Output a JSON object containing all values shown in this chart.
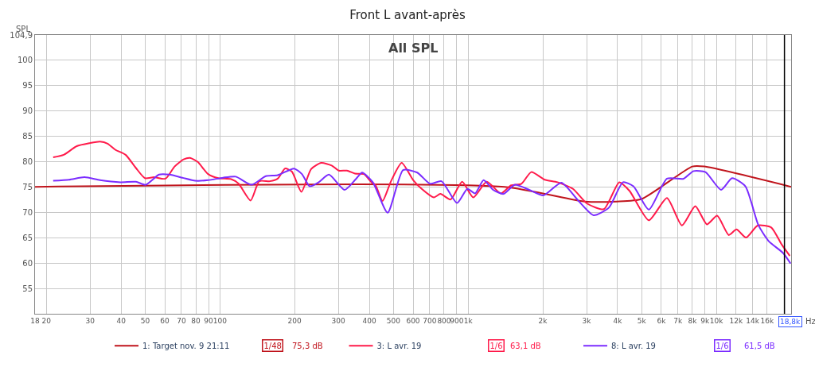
{
  "chart_data": {
    "type": "line",
    "title": "Front L avant-après",
    "xlabel": "Hz",
    "ylabel": "SPL",
    "log": "x",
    "grid": true,
    "legend": "bottom",
    "marker": "none",
    "line_style": "solid",
    "xlim": [
      18,
      20000
    ],
    "ylim": [
      50,
      104.9
    ],
    "xticks": [
      18,
      20,
      30,
      40,
      50,
      60,
      70,
      80,
      90,
      100,
      200,
      300,
      400,
      500,
      600,
      700,
      800,
      900,
      {
        "value": 1000,
        "label": "1k"
      },
      {
        "value": 2000,
        "label": "2k"
      },
      {
        "value": 3000,
        "label": "3k"
      },
      {
        "value": 4000,
        "label": "4k"
      },
      {
        "value": 5000,
        "label": "5k"
      },
      {
        "value": 6000,
        "label": "6k"
      },
      {
        "value": 7000,
        "label": "7k"
      },
      {
        "value": 8000,
        "label": "8k"
      },
      {
        "value": 9000,
        "label": "9k"
      },
      {
        "value": 10000,
        "label": "10k"
      },
      {
        "value": 12000,
        "label": "12k"
      },
      {
        "value": 14000,
        "label": "14k"
      },
      {
        "value": 16000,
        "label": "16k"
      }
    ],
    "yticks": [
      55,
      60,
      65,
      70,
      75,
      80,
      85,
      90,
      95,
      100,
      {
        "value": 104.9,
        "label": "104,9"
      }
    ],
    "ref_lines": [
      {
        "axis": "x",
        "value": 18800,
        "label": "18,8k",
        "color": "#000000"
      }
    ],
    "annotations": [
      "All SPL",
      "1/48",
      "75,3 dB",
      "1/6",
      "63,1 dB",
      "1/6",
      "61,5 dB"
    ],
    "series": [
      {
        "name": "1: Target nov. 9 21:11",
        "color": "#c0141c",
        "x": [
          18,
          1400,
          2950,
          3970,
          5000,
          8000,
          8930,
          20000
        ],
        "values": [
          75,
          75,
          72.1,
          72.1,
          72.6,
          79.0,
          79.0,
          75.0
        ]
      },
      {
        "name": "3: L avr. 19",
        "color": "#ff1a4a",
        "x": [
          21.3,
          23.5,
          26.5,
          29.9,
          32.9,
          35.3,
          37.9,
          41.7,
          45.9,
          49.9,
          54.2,
          60.4,
          65.7,
          71.4,
          75.8,
          81.4,
          89.6,
          98.6,
          111,
          119,
          133,
          144,
          159,
          171,
          183,
          195,
          213,
          233,
          256,
          282,
          301,
          325,
          350,
          380,
          408,
          423,
          452,
          489,
          540,
          601,
          646,
          728,
          773,
          850,
          946,
          1049,
          1188,
          1355,
          1490,
          1640,
          1796,
          2033,
          2291,
          2644,
          3014,
          3522,
          4064,
          4467,
          5345,
          6322,
          7261,
          8222,
          9160,
          10070,
          11220,
          12050,
          13160,
          14690,
          16630,
          18290,
          19760
        ],
        "values": [
          80.8,
          81.3,
          83.0,
          83.6,
          83.9,
          83.5,
          82.3,
          81.3,
          78.7,
          76.7,
          76.9,
          76.6,
          79.0,
          80.4,
          80.7,
          79.9,
          77.5,
          76.7,
          76.5,
          75.6,
          72.3,
          76.1,
          76.1,
          76.6,
          78.6,
          78.0,
          74.0,
          78.5,
          79.7,
          79.2,
          78.2,
          78.2,
          77.6,
          77.5,
          75.9,
          75.4,
          72.2,
          76.1,
          79.7,
          76.3,
          74.7,
          72.9,
          73.6,
          72.5,
          76.0,
          72.9,
          76.0,
          73.7,
          75.3,
          75.6,
          77.9,
          76.4,
          75.9,
          74.6,
          71.7,
          70.6,
          75.9,
          74.2,
          68.4,
          72.8,
          67.4,
          71.2,
          67.6,
          69.3,
          65.5,
          66.6,
          65.0,
          67.4,
          67.0,
          63.7,
          61.4
        ]
      },
      {
        "name": "8: L avr. 19",
        "color": "#7b2cff",
        "x": [
          21.3,
          24.7,
          28.5,
          32.9,
          39.8,
          45.9,
          50.2,
          56.9,
          62.6,
          70.6,
          79.5,
          89.6,
          103,
          116,
          134,
          153,
          171,
          199,
          214,
          230,
          250,
          275,
          318,
          354,
          374,
          413,
          474,
          547,
          624,
          702,
          781,
          902,
          993,
          1067,
          1154,
          1261,
          1388,
          1544,
          1761,
          2010,
          2375,
          2775,
          3200,
          3690,
          4207,
          4634,
          5345,
          6322,
          7380,
          8088,
          9036,
          10440,
          11570,
          13090,
          14750,
          16250,
          18530,
          19900
        ],
        "values": [
          76.2,
          76.4,
          76.9,
          76.3,
          75.9,
          76.0,
          75.4,
          77.4,
          77.4,
          76.8,
          76.2,
          76.3,
          76.8,
          77.0,
          75.4,
          77.1,
          77.3,
          78.6,
          77.5,
          75.1,
          75.9,
          77.4,
          74.4,
          76.6,
          77.8,
          75.9,
          69.9,
          78.3,
          77.8,
          75.6,
          76.1,
          71.8,
          74.6,
          73.7,
          76.3,
          74.4,
          73.6,
          75.4,
          74.4,
          73.3,
          75.8,
          72.3,
          69.4,
          70.9,
          75.9,
          75.1,
          70.5,
          76.6,
          76.6,
          78.1,
          77.9,
          74.4,
          76.7,
          75.1,
          67.5,
          64.3,
          62.0,
          59.9
        ]
      }
    ]
  }
}
